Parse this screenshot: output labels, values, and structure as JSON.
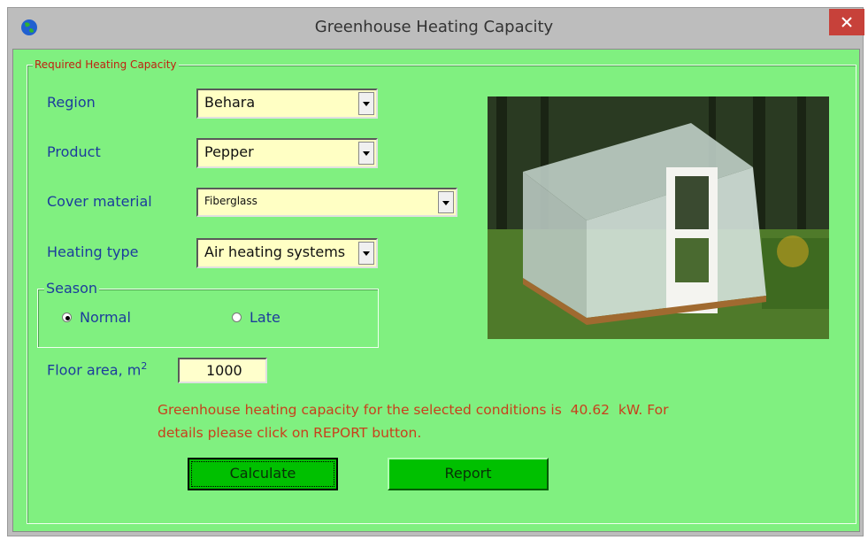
{
  "window": {
    "title": "Greenhouse Heating Capacity"
  },
  "group": {
    "title": "Required Heating Capacity"
  },
  "fields": [
    {
      "label": "Region",
      "value": "Behara"
    },
    {
      "label": "Product",
      "value": "Pepper"
    },
    {
      "label": "Cover material",
      "value": "Fiberglass"
    },
    {
      "label": "Heating type",
      "value": "Air heating systems"
    }
  ],
  "season": {
    "title": "Season",
    "options": [
      {
        "label": "Normal",
        "selected": true
      },
      {
        "label": "Late",
        "selected": false
      }
    ]
  },
  "floor_area": {
    "label": "Floor area, m",
    "superscript": "2",
    "value": "1000"
  },
  "message": [
    "Greenhouse heating capacity for the selected conditions is  40.62  kW. For",
    "details please click on REPORT button."
  ],
  "buttons": [
    "Calculate",
    "Report"
  ]
}
